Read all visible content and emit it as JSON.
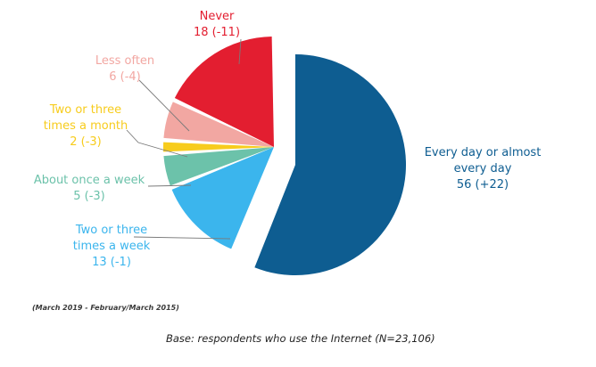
{
  "chart_data": {
    "type": "pie",
    "unit": "%",
    "slices": [
      {
        "label_lines": [
          "Every day or almost",
          "every day"
        ],
        "value": 56,
        "change": "+22",
        "value_text": "56 (+22)",
        "color": "#0e5d91"
      },
      {
        "label_lines": [
          "Two or three",
          "times a week"
        ],
        "value": 13,
        "change": "-1",
        "value_text": "13 (-1)",
        "color": "#3bb5ed"
      },
      {
        "label_lines": [
          "About once a week"
        ],
        "value": 5,
        "change": "-3",
        "value_text": "5 (-3)",
        "color": "#6cc2aa"
      },
      {
        "label_lines": [
          "Two or three",
          "times a month"
        ],
        "value": 2,
        "change": "-3",
        "value_text": "2 (-3)",
        "color": "#f7cc1d"
      },
      {
        "label_lines": [
          "Less often"
        ],
        "value": 6,
        "change": "-4",
        "value_text": "6 (-4)",
        "color": "#f2a7a2"
      },
      {
        "label_lines": [
          "Never"
        ],
        "value": 18,
        "change": "-11",
        "value_text": "18 (-11)",
        "color": "#e31e30"
      }
    ],
    "legend": "none"
  },
  "period_note": "(March 2019 - February/March 2015)",
  "base_note": "Base: respondents who use the Internet (N=23,106)"
}
